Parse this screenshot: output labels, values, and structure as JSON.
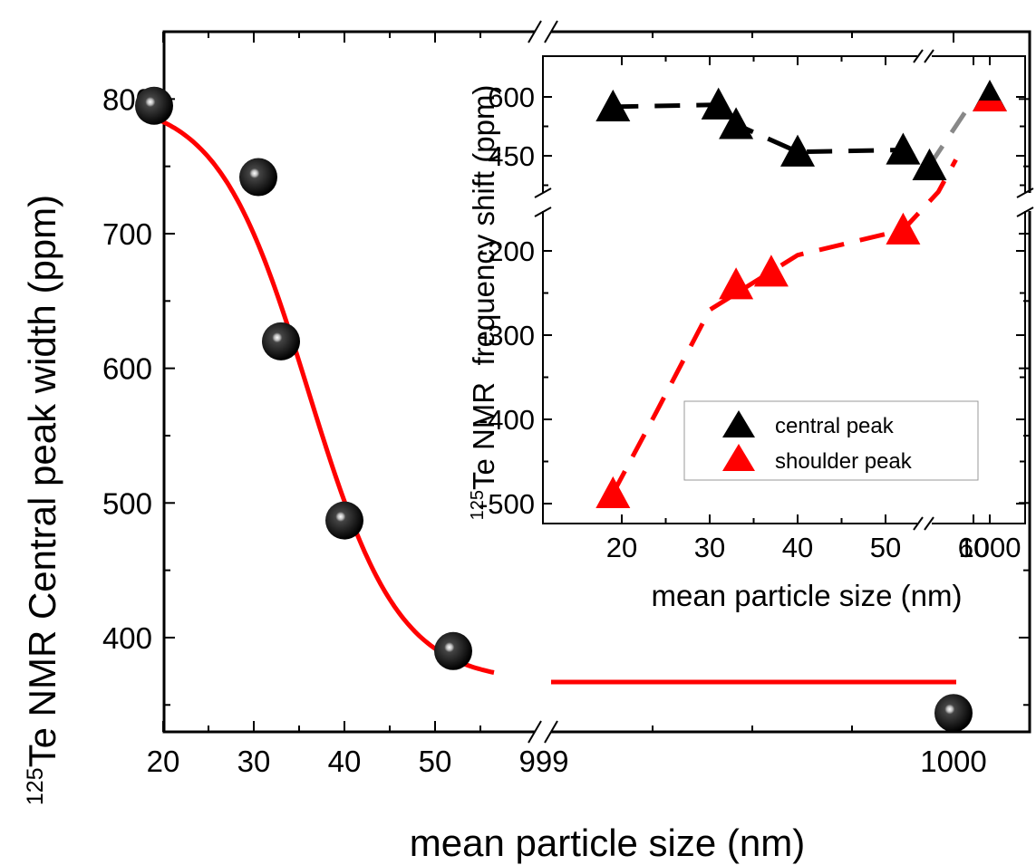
{
  "chart_data": [
    {
      "id": "main",
      "type": "scatter",
      "xlabel": "mean particle size (nm)",
      "ylabel": "Te NMR Central peak width (ppm)",
      "ylabel_superscript": "125",
      "x_axis_break": true,
      "x_segments": [
        {
          "range": [
            18,
            57
          ],
          "ticks": [
            20,
            30,
            40,
            50
          ],
          "minor_ticks": [
            25,
            35,
            45,
            55
          ]
        },
        {
          "range": [
            999,
            1000
          ],
          "ticks": [
            999,
            1000
          ]
        }
      ],
      "x_tick_labels": [
        "20",
        "30",
        "40",
        "50",
        "999",
        "1000"
      ],
      "ylim": [
        330,
        850
      ],
      "y_ticks": [
        400,
        500,
        600,
        700,
        800
      ],
      "y_tick_labels": [
        "400",
        "500",
        "600",
        "700",
        "800"
      ],
      "series": [
        {
          "kind": "points",
          "marker": "sphere",
          "color": "#000000",
          "points": [
            {
              "x": 19,
              "y": 795
            },
            {
              "x": 30.5,
              "y": 742
            },
            {
              "x": 33,
              "y": 620
            },
            {
              "x": 40,
              "y": 487
            },
            {
              "x": 52,
              "y": 390
            },
            {
              "x": 1000,
              "y": 344
            }
          ]
        },
        {
          "kind": "fit",
          "color": "#ff0000",
          "model": "sigmoid",
          "params": {
            "top": 800,
            "bottom": 367,
            "center": 36,
            "width": 5
          },
          "x_from": 19,
          "x_to": 1000
        }
      ]
    },
    {
      "id": "inset",
      "type": "scatter",
      "xlabel": "mean particle size (nm)",
      "ylabel": "Te NMR  frequency shift (ppm)",
      "ylabel_superscript": "125",
      "x_axis_break": true,
      "x_tick_labels": [
        "20",
        "30",
        "40",
        "50",
        "60",
        "1000"
      ],
      "x_ticks": [
        20,
        30,
        40,
        50,
        60,
        1000
      ],
      "y_axis_break": true,
      "y_upper_ticks": [
        450,
        600
      ],
      "y_lower_ticks": [
        -500,
        -400,
        -300,
        -200
      ],
      "y_tick_labels": [
        "600",
        "450",
        "-200",
        "-300",
        "-400",
        "-500"
      ],
      "legend": {
        "position": "lower-right",
        "entries": [
          {
            "label": "central peak",
            "color": "#000000",
            "marker": "triangle"
          },
          {
            "label": "shoulder peak",
            "color": "#ff0000",
            "marker": "triangle"
          }
        ]
      },
      "series": [
        {
          "name": "central peak",
          "color": "#000000",
          "marker": "triangle",
          "points": [
            {
              "x": 19,
              "y": 575
            },
            {
              "x": 31,
              "y": 580
            },
            {
              "x": 33,
              "y": 530
            },
            {
              "x": 40,
              "y": 460
            },
            {
              "x": 52,
              "y": 465
            },
            {
              "x": 55,
              "y": 425
            },
            {
              "x": 1000,
              "y": 600
            }
          ]
        },
        {
          "name": "shoulder peak",
          "color": "#ff0000",
          "marker": "triangle",
          "points": [
            {
              "x": 19,
              "y": -488
            },
            {
              "x": 33,
              "y": -240
            },
            {
              "x": 37,
              "y": -225
            },
            {
              "x": 52,
              "y": -175
            },
            {
              "x": 1000,
              "y": 600
            }
          ]
        }
      ]
    }
  ]
}
